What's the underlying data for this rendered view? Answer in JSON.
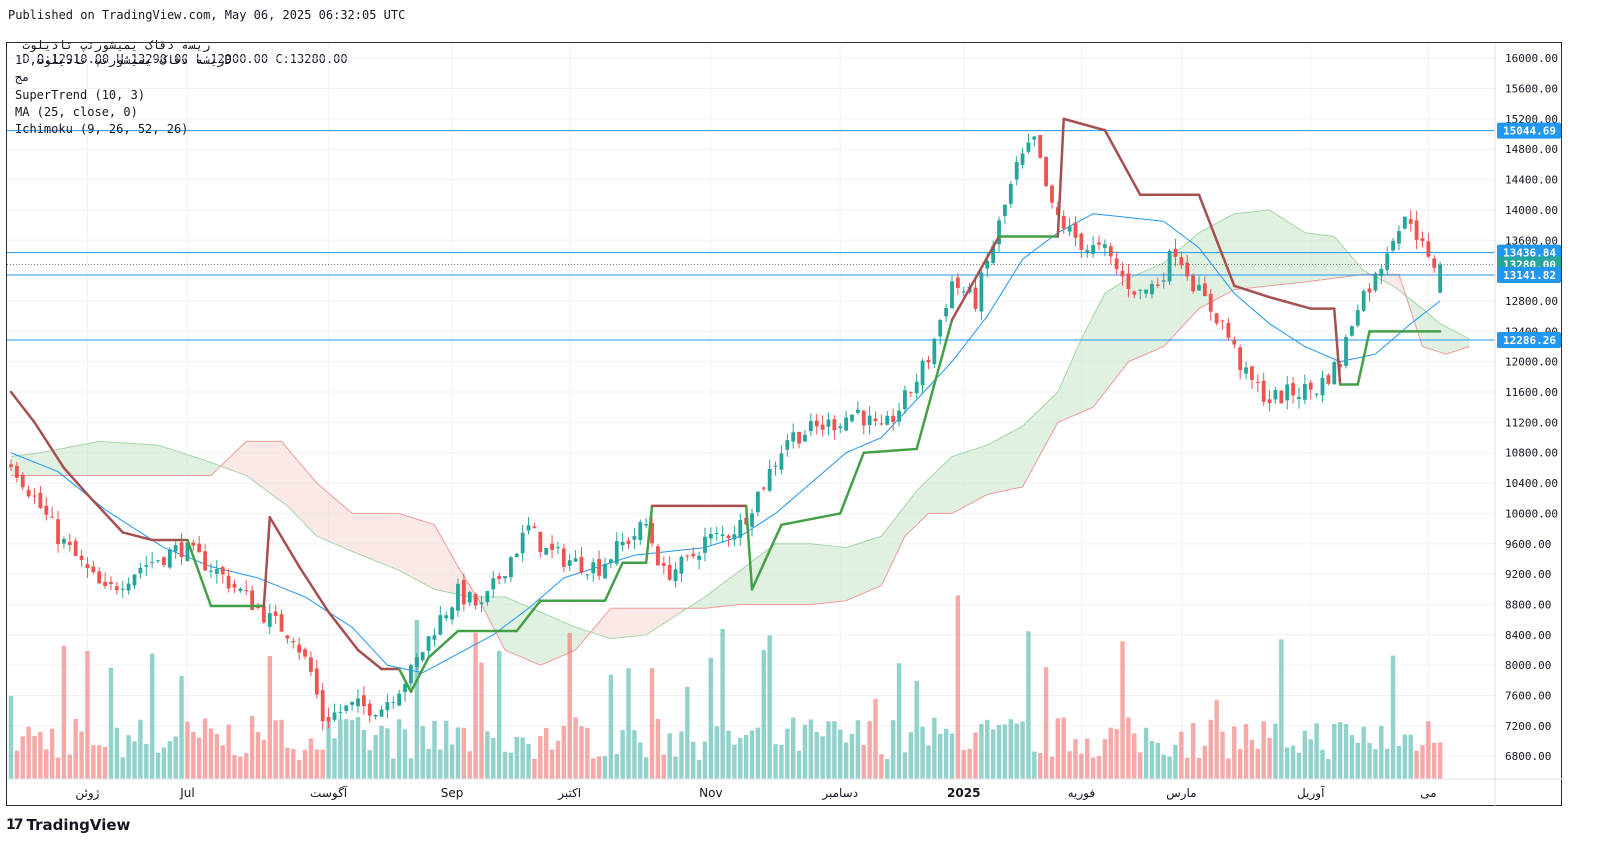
{
  "header": {
    "published_line": "Published on TradingView.com, May 06, 2025 06:32:05 UTC",
    "symbol_name": "ریسه دقاک یمیشورتپ تادیلوت",
    "ohlc_line": "D O:12910.00 H:13290.00 L:12900.00 C:13280.00"
  },
  "legend": {
    "line1": "ریسه دقاک یمیشورتپ تادیلوت, 1D",
    "line2": "مج",
    "supertrend": "SuperTrend (10, 3)",
    "ma": "MA (25, close, 0)",
    "ichimoku": "Ichimoku (9, 26, 52, 26)"
  },
  "footer": {
    "brand": "TradingView",
    "brand_icon": "tradingview-logo-icon"
  },
  "colors": {
    "up": "#26a69a",
    "down": "#ef5350",
    "ma": "#2196f3",
    "supertrend_up": "#43a047",
    "supertrend_down": "#a54f4f",
    "cloud_bull": "#c8e6c9",
    "cloud_bear": "#f8d7d4",
    "hline": "#2196f3",
    "last_price": "#26a69a"
  },
  "chart_data": {
    "type": "candlestick",
    "ylim": [
      6500,
      16200
    ],
    "y_ticks": [
      16000,
      15600,
      15200,
      14800,
      14400,
      14000,
      13600,
      13200,
      12800,
      12400,
      12000,
      11600,
      11200,
      10800,
      10400,
      10000,
      9600,
      9200,
      8800,
      8400,
      8000,
      7600,
      7200,
      6800
    ],
    "x_tick_labels": [
      {
        "label": "ژوئن",
        "index": 13
      },
      {
        "label": "Jul",
        "index": 30
      },
      {
        "label": "آگوست",
        "index": 54
      },
      {
        "label": "Sep",
        "index": 75
      },
      {
        "label": "اکتبر",
        "index": 95
      },
      {
        "label": "Nov",
        "index": 119
      },
      {
        "label": "دسامبر",
        "index": 141
      },
      {
        "label": "2025",
        "index": 162
      },
      {
        "label": "فوریه",
        "index": 182
      },
      {
        "label": "مارس",
        "index": 199
      },
      {
        "label": "آوریل",
        "index": 221
      },
      {
        "label": "می",
        "index": 241
      }
    ],
    "horizontal_lines": [
      15044.69,
      13436.84,
      13141.82,
      12286.26
    ],
    "price_labels": [
      {
        "value": 15044.69,
        "text": "15044.69",
        "color": "#2196f3"
      },
      {
        "value": 13436.84,
        "text": "13436.84",
        "color": "#2196f3"
      },
      {
        "value": 13280.0,
        "text": "13280.00",
        "color": "#26a69a"
      },
      {
        "value": 13141.82,
        "text": "13141.82",
        "color": "#2196f3"
      },
      {
        "value": 12286.26,
        "text": "12286.26",
        "color": "#2196f3"
      }
    ],
    "last_price": 13280.0,
    "close_keypoints": [
      [
        0,
        10700
      ],
      [
        8,
        9700
      ],
      [
        16,
        8950
      ],
      [
        22,
        9300
      ],
      [
        29,
        9550
      ],
      [
        34,
        9300
      ],
      [
        40,
        8900
      ],
      [
        44,
        8600
      ],
      [
        48,
        8400
      ],
      [
        51,
        7900
      ],
      [
        53,
        7300
      ],
      [
        58,
        7450
      ],
      [
        63,
        7450
      ],
      [
        68,
        7900
      ],
      [
        72,
        8500
      ],
      [
        76,
        8950
      ],
      [
        80,
        8750
      ],
      [
        84,
        9300
      ],
      [
        88,
        9800
      ],
      [
        91,
        9500
      ],
      [
        96,
        9350
      ],
      [
        100,
        9300
      ],
      [
        104,
        9600
      ],
      [
        108,
        9850
      ],
      [
        111,
        9200
      ],
      [
        115,
        9350
      ],
      [
        118,
        9650
      ],
      [
        121,
        9700
      ],
      [
        124,
        9850
      ],
      [
        128,
        10400
      ],
      [
        132,
        11000
      ],
      [
        136,
        11100
      ],
      [
        140,
        11200
      ],
      [
        144,
        11350
      ],
      [
        148,
        11050
      ],
      [
        152,
        11500
      ],
      [
        156,
        12050
      ],
      [
        160,
        13050
      ],
      [
        164,
        12800
      ],
      [
        168,
        13800
      ],
      [
        171,
        14550
      ],
      [
        174,
        14900
      ],
      [
        177,
        14000
      ],
      [
        180,
        13700
      ],
      [
        183,
        13500
      ],
      [
        186,
        13450
      ],
      [
        189,
        13100
      ],
      [
        192,
        12900
      ],
      [
        195,
        13050
      ],
      [
        198,
        13500
      ],
      [
        202,
        12900
      ],
      [
        206,
        12500
      ],
      [
        210,
        11800
      ],
      [
        214,
        11500
      ],
      [
        218,
        11600
      ],
      [
        222,
        11650
      ],
      [
        226,
        12000
      ],
      [
        229,
        12800
      ],
      [
        232,
        13100
      ],
      [
        235,
        13700
      ],
      [
        238,
        13900
      ],
      [
        241,
        13300
      ],
      [
        243,
        13280
      ]
    ],
    "supertrend_keypoints": [
      [
        0,
        11600
      ],
      [
        4,
        11200
      ],
      [
        9,
        10600
      ],
      [
        13,
        10250
      ],
      [
        19,
        9750
      ],
      [
        24,
        9650
      ],
      [
        30,
        9650
      ],
      [
        34,
        8780
      ],
      [
        43,
        8780
      ],
      [
        44,
        9950
      ],
      [
        49,
        9300
      ],
      [
        54,
        8700
      ],
      [
        59,
        8200
      ],
      [
        63,
        7950
      ],
      [
        66,
        7950
      ],
      [
        68,
        7650
      ],
      [
        71,
        8100
      ],
      [
        76,
        8450
      ],
      [
        86,
        8450
      ],
      [
        90,
        8850
      ],
      [
        101,
        8850
      ],
      [
        104,
        9350
      ],
      [
        108,
        9350
      ],
      [
        109,
        10100
      ],
      [
        125,
        10100
      ],
      [
        126,
        9000
      ],
      [
        131,
        9850
      ],
      [
        141,
        10000
      ],
      [
        145,
        10800
      ],
      [
        154,
        10850
      ],
      [
        160,
        12550
      ],
      [
        168,
        13650
      ],
      [
        178,
        13650
      ],
      [
        179,
        15200
      ],
      [
        186,
        15050
      ],
      [
        192,
        14200
      ],
      [
        202,
        14200
      ],
      [
        208,
        13000
      ],
      [
        214,
        12850
      ],
      [
        221,
        12700
      ],
      [
        225,
        12700
      ],
      [
        226,
        11700
      ],
      [
        229,
        11700
      ],
      [
        231,
        12400
      ],
      [
        243,
        12400
      ]
    ],
    "ma_keypoints": [
      [
        0,
        10800
      ],
      [
        8,
        10550
      ],
      [
        16,
        10050
      ],
      [
        26,
        9550
      ],
      [
        34,
        9300
      ],
      [
        42,
        9150
      ],
      [
        50,
        8900
      ],
      [
        58,
        8500
      ],
      [
        64,
        8000
      ],
      [
        70,
        7900
      ],
      [
        76,
        8150
      ],
      [
        82,
        8400
      ],
      [
        88,
        8750
      ],
      [
        94,
        9150
      ],
      [
        100,
        9300
      ],
      [
        106,
        9450
      ],
      [
        112,
        9500
      ],
      [
        118,
        9550
      ],
      [
        124,
        9700
      ],
      [
        130,
        10000
      ],
      [
        136,
        10400
      ],
      [
        142,
        10800
      ],
      [
        148,
        11000
      ],
      [
        154,
        11500
      ],
      [
        160,
        12000
      ],
      [
        166,
        12600
      ],
      [
        172,
        13350
      ],
      [
        178,
        13700
      ],
      [
        184,
        13950
      ],
      [
        190,
        13900
      ],
      [
        196,
        13850
      ],
      [
        202,
        13500
      ],
      [
        208,
        12900
      ],
      [
        214,
        12500
      ],
      [
        220,
        12200
      ],
      [
        226,
        12000
      ],
      [
        232,
        12100
      ],
      [
        238,
        12500
      ],
      [
        243,
        12800
      ]
    ],
    "cloud_a_keypoints": [
      [
        0,
        10750
      ],
      [
        5,
        10800
      ],
      [
        15,
        10950
      ],
      [
        25,
        10900
      ],
      [
        33,
        10700
      ],
      [
        40,
        10500
      ],
      [
        47,
        10100
      ],
      [
        52,
        9700
      ],
      [
        58,
        9500
      ],
      [
        66,
        9250
      ],
      [
        72,
        9000
      ],
      [
        78,
        8900
      ],
      [
        84,
        8900
      ],
      [
        90,
        8700
      ],
      [
        96,
        8500
      ],
      [
        102,
        8350
      ],
      [
        108,
        8400
      ],
      [
        112,
        8600
      ],
      [
        118,
        8900
      ],
      [
        124,
        9250
      ],
      [
        130,
        9600
      ],
      [
        136,
        9600
      ],
      [
        142,
        9550
      ],
      [
        148,
        9700
      ],
      [
        154,
        10300
      ],
      [
        160,
        10750
      ],
      [
        166,
        10900
      ],
      [
        172,
        11150
      ],
      [
        178,
        11600
      ],
      [
        182,
        12300
      ],
      [
        186,
        12900
      ],
      [
        190,
        13100
      ],
      [
        196,
        13300
      ],
      [
        202,
        13700
      ],
      [
        208,
        13950
      ],
      [
        214,
        14000
      ],
      [
        220,
        13700
      ],
      [
        225,
        13650
      ],
      [
        230,
        13200
      ],
      [
        235,
        13000
      ],
      [
        240,
        12700
      ],
      [
        243,
        12500
      ],
      [
        248,
        12300
      ]
    ],
    "cloud_b_keypoints": [
      [
        0,
        10500
      ],
      [
        20,
        10500
      ],
      [
        34,
        10500
      ],
      [
        40,
        10950
      ],
      [
        46,
        10950
      ],
      [
        52,
        10400
      ],
      [
        58,
        10000
      ],
      [
        66,
        10000
      ],
      [
        72,
        9850
      ],
      [
        76,
        9300
      ],
      [
        80,
        8800
      ],
      [
        84,
        8200
      ],
      [
        90,
        8000
      ],
      [
        96,
        8200
      ],
      [
        102,
        8750
      ],
      [
        110,
        8750
      ],
      [
        118,
        8750
      ],
      [
        124,
        8800
      ],
      [
        130,
        8800
      ],
      [
        136,
        8800
      ],
      [
        142,
        8850
      ],
      [
        148,
        9050
      ],
      [
        152,
        9700
      ],
      [
        156,
        10000
      ],
      [
        160,
        10000
      ],
      [
        166,
        10250
      ],
      [
        172,
        10350
      ],
      [
        178,
        11200
      ],
      [
        184,
        11400
      ],
      [
        190,
        12000
      ],
      [
        196,
        12200
      ],
      [
        202,
        12700
      ],
      [
        208,
        12950
      ],
      [
        214,
        13000
      ],
      [
        220,
        13050
      ],
      [
        225,
        13100
      ],
      [
        230,
        13150
      ],
      [
        236,
        13150
      ],
      [
        240,
        12200
      ],
      [
        244,
        12100
      ],
      [
        248,
        12200
      ]
    ],
    "volume_max": 6000
  }
}
